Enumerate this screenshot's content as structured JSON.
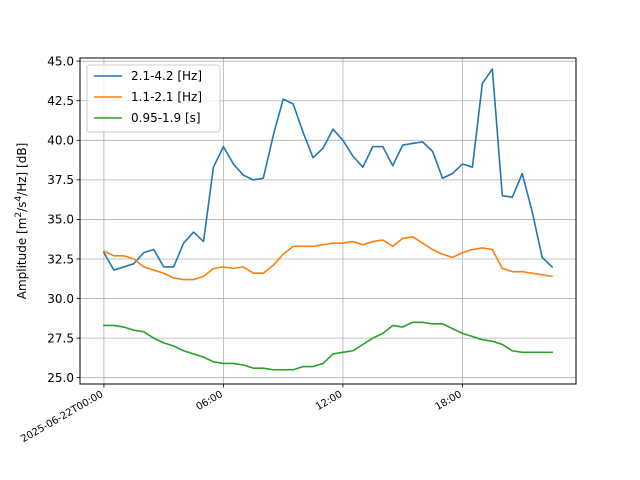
{
  "chart_data": {
    "type": "line",
    "title": "",
    "xlabel": "",
    "ylabel": "Amplitude [m²/s⁴/Hz] [dB]",
    "ylabel_parts": [
      "Amplitude [m",
      "2",
      "/s",
      "4",
      "/Hz] [dB]"
    ],
    "x_unit": "hours since 2025-06-22T00:00",
    "xlim": [
      -1.2,
      23.7
    ],
    "ylim": [
      24.6,
      45.2
    ],
    "x_ticks": [
      {
        "x": 0,
        "label": "2025-06-22T00:00"
      },
      {
        "x": 6,
        "label": "06:00"
      },
      {
        "x": 12,
        "label": "12:00"
      },
      {
        "x": 18,
        "label": "18:00"
      }
    ],
    "y_ticks": [
      {
        "y": 25.0,
        "label": "25.0"
      },
      {
        "y": 27.5,
        "label": "27.5"
      },
      {
        "y": 30.0,
        "label": "30.0"
      },
      {
        "y": 32.5,
        "label": "32.5"
      },
      {
        "y": 35.0,
        "label": "35.0"
      },
      {
        "y": 37.5,
        "label": "37.5"
      },
      {
        "y": 40.0,
        "label": "40.0"
      },
      {
        "y": 42.5,
        "label": "42.5"
      },
      {
        "y": 45.0,
        "label": "45.0"
      }
    ],
    "grid": true,
    "legend_position": "top-left",
    "x": [
      0,
      0.5,
      1,
      1.5,
      2,
      2.5,
      3,
      3.5,
      4,
      4.5,
      5,
      5.5,
      6,
      6.5,
      7,
      7.5,
      8,
      8.5,
      9,
      9.5,
      10,
      10.5,
      11,
      11.5,
      12,
      12.5,
      13,
      13.5,
      14,
      14.5,
      15,
      15.5,
      16,
      16.5,
      17,
      17.5,
      18,
      18.5,
      19,
      19.5,
      20,
      20.5,
      21,
      21.5,
      22,
      22.5
    ],
    "series": [
      {
        "name": "2.1-4.2 [Hz]",
        "color": "#1f77b4",
        "values": [
          32.9,
          31.8,
          32.0,
          32.2,
          32.9,
          33.1,
          32.0,
          32.0,
          33.5,
          34.2,
          33.6,
          38.3,
          39.6,
          38.5,
          37.8,
          37.5,
          37.6,
          40.3,
          42.6,
          42.3,
          40.5,
          38.9,
          39.5,
          40.7,
          40.0,
          39.0,
          38.3,
          39.6,
          39.6,
          38.4,
          39.7,
          39.8,
          39.9,
          39.3,
          37.6,
          37.9,
          38.5,
          38.3,
          43.6,
          44.5,
          36.5,
          36.4,
          37.9,
          35.5,
          32.6,
          32.0
        ]
      },
      {
        "name": "1.1-2.1 [Hz]",
        "color": "#ff7f0e",
        "values": [
          33.0,
          32.7,
          32.7,
          32.5,
          32.0,
          31.8,
          31.6,
          31.3,
          31.2,
          31.2,
          31.4,
          31.9,
          32.0,
          31.9,
          32.0,
          31.6,
          31.6,
          32.1,
          32.8,
          33.3,
          33.3,
          33.3,
          33.4,
          33.5,
          33.5,
          33.6,
          33.4,
          33.6,
          33.7,
          33.3,
          33.8,
          33.9,
          33.5,
          33.1,
          32.8,
          32.6,
          32.9,
          33.1,
          33.2,
          33.1,
          31.9,
          31.7,
          31.7,
          31.6,
          31.5,
          31.4
        ]
      },
      {
        "name": "0.95-1.9 [s]",
        "color": "#2ca02c",
        "values": [
          28.3,
          28.3,
          28.2,
          28.0,
          27.9,
          27.5,
          27.2,
          27.0,
          26.7,
          26.5,
          26.3,
          26.0,
          25.9,
          25.9,
          25.8,
          25.6,
          25.6,
          25.5,
          25.5,
          25.5,
          25.7,
          25.7,
          25.9,
          26.5,
          26.6,
          26.7,
          27.1,
          27.5,
          27.8,
          28.3,
          28.2,
          28.5,
          28.5,
          28.4,
          28.4,
          28.1,
          27.8,
          27.6,
          27.4,
          27.3,
          27.1,
          26.7,
          26.6,
          26.6,
          26.6,
          26.6
        ]
      }
    ]
  }
}
